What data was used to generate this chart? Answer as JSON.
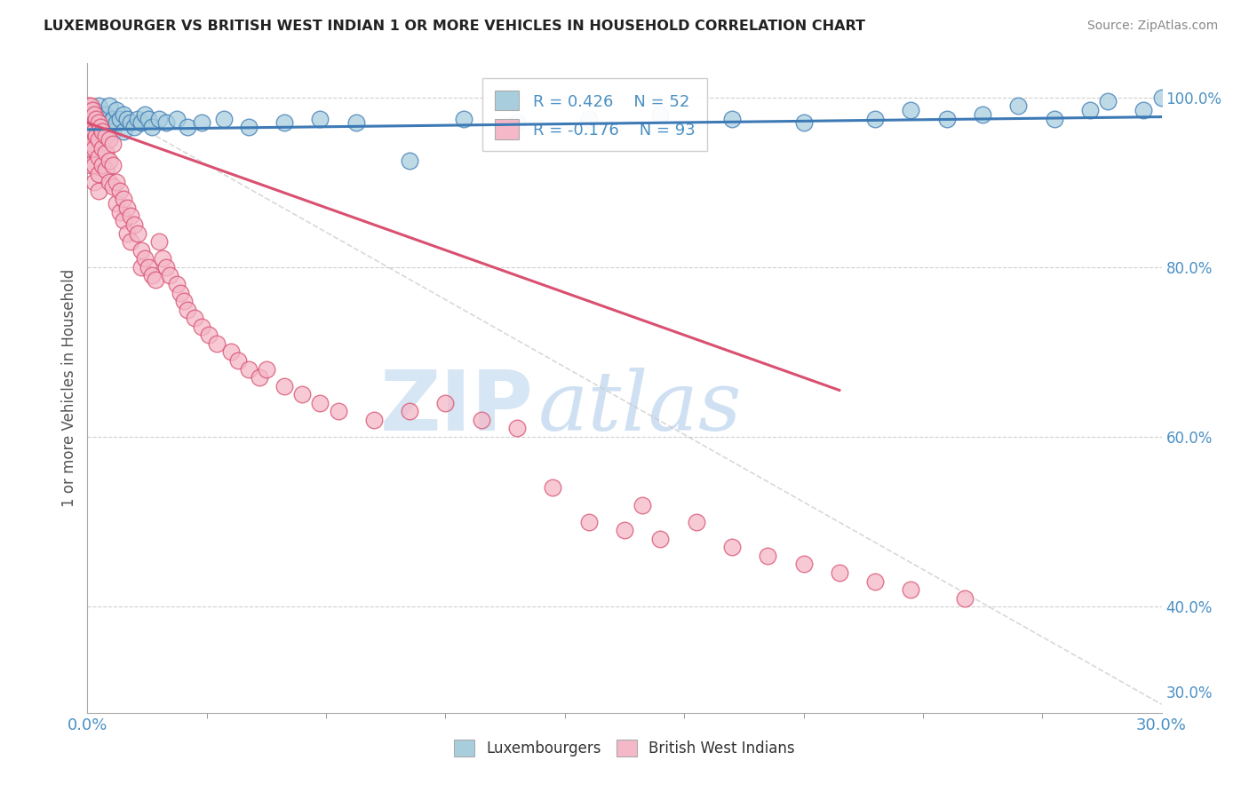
{
  "title": "LUXEMBOURGER VS BRITISH WEST INDIAN 1 OR MORE VEHICLES IN HOUSEHOLD CORRELATION CHART",
  "source": "Source: ZipAtlas.com",
  "ylabel": "1 or more Vehicles in Household",
  "yticks_right": [
    "100.0%",
    "80.0%",
    "60.0%",
    "40.0%",
    "30.0%"
  ],
  "yticks_right_vals": [
    1.0,
    0.8,
    0.6,
    0.4,
    0.3
  ],
  "legend_r_blue": "R = 0.426",
  "legend_n_blue": "N = 52",
  "legend_r_pink": "R = -0.176",
  "legend_n_pink": "N = 93",
  "color_blue": "#A8CEDE",
  "color_pink": "#F4B8C8",
  "color_blue_line": "#3D7AB5",
  "color_pink_line": "#D95070",
  "color_diag": "#C8C8C8",
  "watermark_zip": "ZIP",
  "watermark_atlas": "atlas",
  "xmin": 0.0,
  "xmax": 0.3,
  "ymin": 0.275,
  "ymax": 1.04,
  "blue_scatter_x": [
    0.001,
    0.002,
    0.003,
    0.003,
    0.004,
    0.004,
    0.005,
    0.005,
    0.006,
    0.006,
    0.007,
    0.007,
    0.008,
    0.008,
    0.009,
    0.01,
    0.01,
    0.011,
    0.012,
    0.013,
    0.014,
    0.015,
    0.016,
    0.017,
    0.018,
    0.02,
    0.022,
    0.025,
    0.028,
    0.032,
    0.038,
    0.045,
    0.055,
    0.065,
    0.075,
    0.09,
    0.105,
    0.12,
    0.14,
    0.16,
    0.18,
    0.2,
    0.22,
    0.23,
    0.24,
    0.25,
    0.26,
    0.27,
    0.28,
    0.285,
    0.295,
    0.3
  ],
  "blue_scatter_y": [
    0.975,
    0.985,
    0.97,
    0.99,
    0.96,
    0.975,
    0.965,
    0.98,
    0.97,
    0.99,
    0.975,
    0.96,
    0.985,
    0.97,
    0.975,
    0.96,
    0.98,
    0.975,
    0.97,
    0.965,
    0.975,
    0.97,
    0.98,
    0.975,
    0.965,
    0.975,
    0.97,
    0.975,
    0.965,
    0.97,
    0.975,
    0.965,
    0.97,
    0.975,
    0.97,
    0.925,
    0.975,
    0.97,
    0.975,
    0.98,
    0.975,
    0.97,
    0.975,
    0.985,
    0.975,
    0.98,
    0.99,
    0.975,
    0.985,
    0.995,
    0.985,
    1.0
  ],
  "pink_scatter_x": [
    0.0005,
    0.0005,
    0.0005,
    0.001,
    0.001,
    0.001,
    0.001,
    0.001,
    0.0015,
    0.0015,
    0.0015,
    0.002,
    0.002,
    0.002,
    0.002,
    0.002,
    0.0025,
    0.0025,
    0.003,
    0.003,
    0.003,
    0.003,
    0.003,
    0.0035,
    0.004,
    0.004,
    0.004,
    0.005,
    0.005,
    0.005,
    0.006,
    0.006,
    0.006,
    0.007,
    0.007,
    0.007,
    0.008,
    0.008,
    0.009,
    0.009,
    0.01,
    0.01,
    0.011,
    0.011,
    0.012,
    0.012,
    0.013,
    0.014,
    0.015,
    0.015,
    0.016,
    0.017,
    0.018,
    0.019,
    0.02,
    0.021,
    0.022,
    0.023,
    0.025,
    0.026,
    0.027,
    0.028,
    0.03,
    0.032,
    0.034,
    0.036,
    0.04,
    0.042,
    0.045,
    0.048,
    0.05,
    0.055,
    0.06,
    0.065,
    0.07,
    0.08,
    0.09,
    0.1,
    0.11,
    0.12,
    0.13,
    0.14,
    0.15,
    0.155,
    0.16,
    0.17,
    0.18,
    0.19,
    0.2,
    0.21,
    0.22,
    0.23,
    0.245
  ],
  "pink_scatter_y": [
    0.99,
    0.97,
    0.95,
    0.99,
    0.975,
    0.96,
    0.94,
    0.92,
    0.985,
    0.965,
    0.945,
    0.98,
    0.96,
    0.94,
    0.92,
    0.9,
    0.975,
    0.955,
    0.97,
    0.95,
    0.93,
    0.91,
    0.89,
    0.965,
    0.96,
    0.94,
    0.92,
    0.955,
    0.935,
    0.915,
    0.95,
    0.925,
    0.9,
    0.945,
    0.92,
    0.895,
    0.9,
    0.875,
    0.89,
    0.865,
    0.88,
    0.855,
    0.87,
    0.84,
    0.86,
    0.83,
    0.85,
    0.84,
    0.82,
    0.8,
    0.81,
    0.8,
    0.79,
    0.785,
    0.83,
    0.81,
    0.8,
    0.79,
    0.78,
    0.77,
    0.76,
    0.75,
    0.74,
    0.73,
    0.72,
    0.71,
    0.7,
    0.69,
    0.68,
    0.67,
    0.68,
    0.66,
    0.65,
    0.64,
    0.63,
    0.62,
    0.63,
    0.64,
    0.62,
    0.61,
    0.54,
    0.5,
    0.49,
    0.52,
    0.48,
    0.5,
    0.47,
    0.46,
    0.45,
    0.44,
    0.43,
    0.42,
    0.41
  ]
}
